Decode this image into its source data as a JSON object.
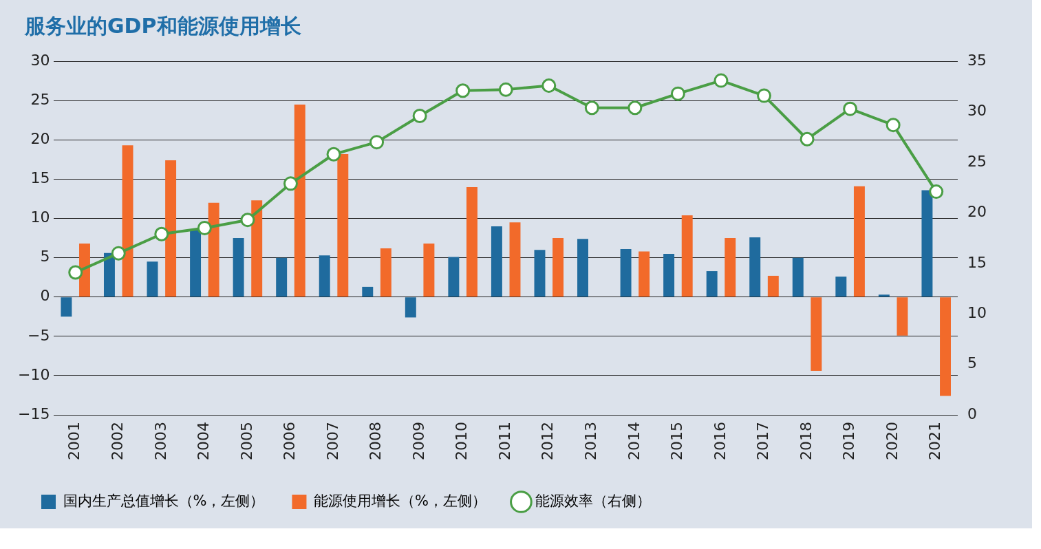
{
  "chart_data": {
    "type": "bar",
    "title": "服务业的GDP和能源使用增长",
    "categories": [
      "2001",
      "2002",
      "2003",
      "2004",
      "2005",
      "2006",
      "2007",
      "2008",
      "2009",
      "2010",
      "2011",
      "2012",
      "2013",
      "2014",
      "2015",
      "2016",
      "2017",
      "2018",
      "2019",
      "2020",
      "2021"
    ],
    "series": [
      {
        "name": "国内生产总值增长（%，左侧）",
        "color": "#1f6b9e",
        "values": [
          -2.5,
          5.6,
          4.5,
          8.5,
          7.5,
          5.0,
          5.3,
          1.3,
          -2.6,
          5.1,
          9.0,
          6.0,
          7.4,
          6.1,
          5.5,
          3.3,
          7.6,
          5.0,
          2.6,
          0.3,
          13.6
        ]
      },
      {
        "name": "能源使用增长（%，左侧）",
        "color": "#f26a2a",
        "values": [
          6.8,
          19.3,
          17.4,
          12.0,
          12.3,
          24.5,
          18.2,
          6.2,
          6.8,
          14.0,
          9.5,
          7.5,
          null,
          5.8,
          10.4,
          7.5,
          2.7,
          -9.4,
          14.1,
          -4.9,
          -12.6
        ]
      },
      {
        "name": "能源效率（右侧）",
        "type": "line",
        "axis": "y2",
        "color": "#4a9e45",
        "values": [
          14.1,
          16.0,
          17.9,
          18.5,
          19.3,
          22.9,
          25.8,
          27.0,
          29.6,
          32.1,
          32.2,
          32.6,
          30.4,
          30.4,
          31.8,
          33.1,
          31.6,
          27.3,
          30.3,
          28.7,
          22.1
        ]
      }
    ],
    "ylim": [
      -15,
      30
    ],
    "yticks": [
      -15,
      -10,
      -5,
      0,
      5,
      10,
      15,
      20,
      25,
      30
    ],
    "y2lim": [
      0,
      35
    ],
    "y2ticks": [
      0,
      5,
      10,
      15,
      20,
      25,
      30,
      35
    ],
    "grid": "y",
    "legend": "bottom",
    "marker": "circle",
    "line_style": "solid"
  }
}
